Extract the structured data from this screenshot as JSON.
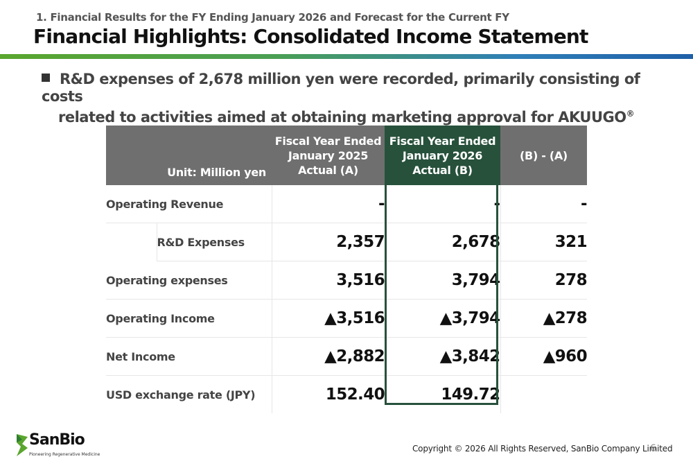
{
  "header": {
    "section": "1. Financial Results for the FY Ending January 2026 and Forecast for the Current FY",
    "title": "Financial Highlights: Consolidated Income Statement"
  },
  "bullet": {
    "line1": "R&D expenses of 2,678 million yen were recorded, primarily consisting of costs",
    "line2": "related to activities aimed at obtaining marketing approval for AKUUGO",
    "reg_mark": "®"
  },
  "table": {
    "unit_label": "Unit: Million yen",
    "col_a": [
      "Fiscal Year Ended",
      "January 2025",
      "Actual (A)"
    ],
    "col_b": [
      "Fiscal Year Ended",
      "January 2026",
      "Actual (B)"
    ],
    "col_diff": "(B) - (A)",
    "rows": [
      {
        "label": "Operating Revenue",
        "a": "-",
        "b": "-",
        "diff": "-"
      },
      {
        "label": "R&D Expenses",
        "a": "2,357",
        "b": "2,678",
        "diff": "321"
      },
      {
        "label": "Operating expenses",
        "a": "3,516",
        "b": "3,794",
        "diff": "278"
      },
      {
        "label": "Operating Income",
        "a": "▲3,516",
        "b": "▲3,794",
        "diff": "▲278"
      },
      {
        "label": "Net Income",
        "a": "▲2,882",
        "b": "▲3,842",
        "diff": "▲960"
      },
      {
        "label": "USD exchange rate (JPY)",
        "a": "152.40",
        "b": "149.72",
        "diff": ""
      }
    ]
  },
  "footer": {
    "logo_name": "SanBio",
    "logo_tagline": "Pioneering Regenerative Medicine",
    "copyright": "Copyright © 2026 All Rights Reserved, SanBio Company Limited",
    "page_number": "6"
  },
  "colors": {
    "header_gray": "#6f6f6f",
    "highlight_green": "#27513b",
    "bar_green": "#5aa62e",
    "bar_blue": "#1f5fa8"
  }
}
